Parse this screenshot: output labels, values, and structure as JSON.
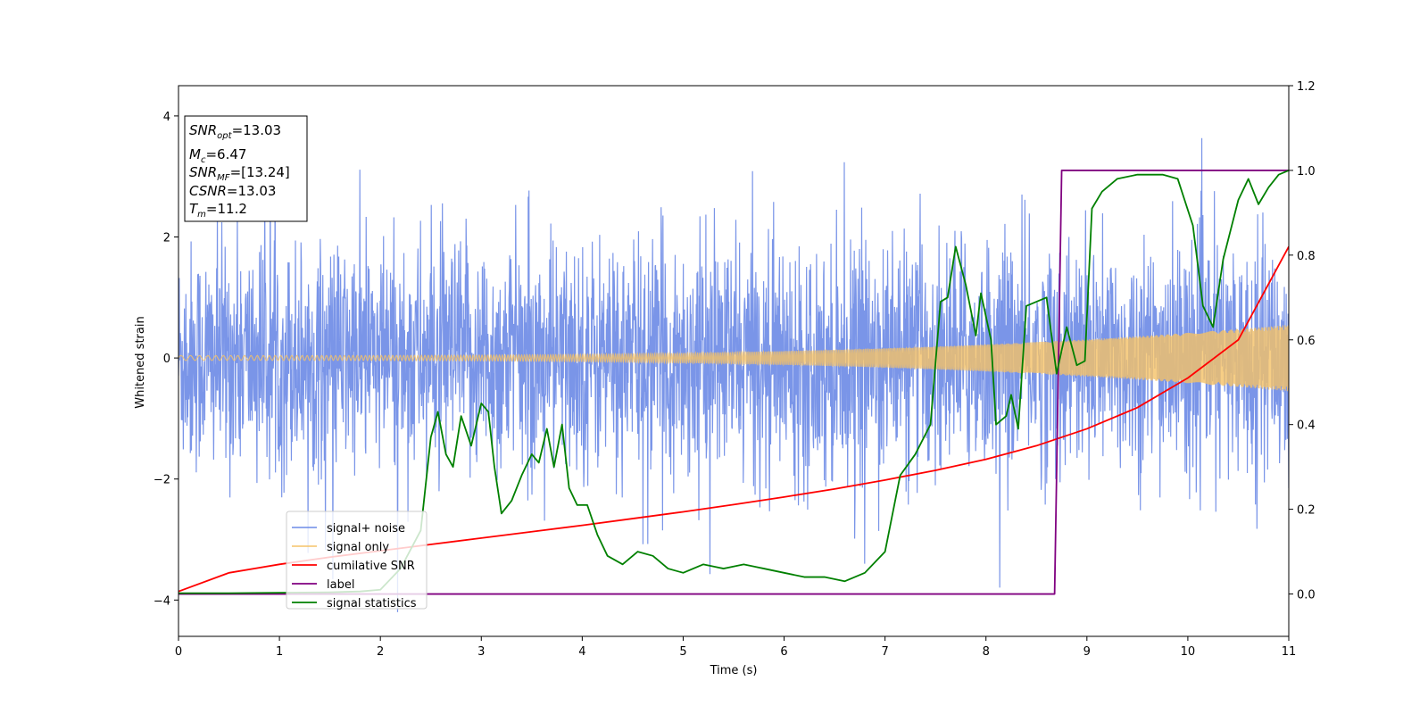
{
  "chart_data": {
    "type": "line",
    "xlabel": "Time (s)",
    "ylabel": "Whitened strain",
    "xlim": [
      0,
      11
    ],
    "ylim_left": [
      -4.6,
      4.5
    ],
    "ylim_right": [
      -0.1,
      1.2
    ],
    "x_ticks": [
      "0",
      "1",
      "2",
      "3",
      "4",
      "5",
      "6",
      "7",
      "8",
      "9",
      "10",
      "11"
    ],
    "y_ticks_left": [
      "4",
      "2",
      "0",
      "−2",
      "−4"
    ],
    "y_ticks_right": [
      "1.2",
      "1.0",
      "0.8",
      "0.6",
      "0.4",
      "0.2",
      "0.0"
    ],
    "info_box": {
      "snr_opt": {
        "main": "SNR",
        "sub": "opt",
        "value": "=13.03"
      },
      "mc": {
        "main": "M",
        "sub": "c",
        "value": "=6.47"
      },
      "snr_mf": {
        "main": "SNR",
        "sub": "MF",
        "value": "=[13.24]"
      },
      "csnr": {
        "main": "CSNR",
        "sub": "",
        "value": "=13.03"
      },
      "tm": {
        "main": "T",
        "sub": "m",
        "value": "=11.2"
      }
    },
    "legend": {
      "placement": "lower-left",
      "entries": [
        "signal+ noise",
        "signal only",
        "cumilative SNR",
        "label",
        "signal statistics"
      ]
    },
    "series": [
      {
        "name": "signal+ noise",
        "axis": "left",
        "color": "#6b8ae6",
        "kind": "noise",
        "std": 0.95
      },
      {
        "name": "signal only",
        "axis": "left",
        "color": "#f5c266",
        "kind": "chirp",
        "amp_start": 0.04,
        "amp_end": 0.55
      },
      {
        "name": "cumilative SNR",
        "axis": "right",
        "color": "#ff0000",
        "x": [
          0,
          0.5,
          1,
          1.5,
          2,
          2.5,
          3,
          3.5,
          4,
          4.5,
          5,
          5.5,
          6,
          6.5,
          7,
          7.5,
          8,
          8.5,
          9,
          9.5,
          10,
          10.5,
          11
        ],
        "y": [
          0.006,
          0.05,
          0.07,
          0.087,
          0.102,
          0.117,
          0.132,
          0.147,
          0.162,
          0.178,
          0.194,
          0.211,
          0.229,
          0.248,
          0.269,
          0.292,
          0.318,
          0.35,
          0.39,
          0.44,
          0.51,
          0.6,
          0.82
        ]
      },
      {
        "name": "label",
        "axis": "right",
        "color": "#800080",
        "x": [
          0,
          8.68,
          8.75,
          11
        ],
        "y": [
          0,
          0,
          1,
          1
        ]
      },
      {
        "name": "signal statistics",
        "axis": "right",
        "color": "#008000",
        "x": [
          0,
          0.5,
          1,
          1.5,
          1.8,
          2.0,
          2.2,
          2.4,
          2.5,
          2.57,
          2.65,
          2.72,
          2.8,
          2.9,
          3.0,
          3.07,
          3.13,
          3.2,
          3.3,
          3.4,
          3.5,
          3.57,
          3.65,
          3.72,
          3.8,
          3.87,
          3.95,
          4.05,
          4.15,
          4.25,
          4.4,
          4.55,
          4.7,
          4.85,
          5.0,
          5.2,
          5.4,
          5.6,
          5.8,
          6.0,
          6.2,
          6.4,
          6.6,
          6.8,
          7.0,
          7.15,
          7.3,
          7.45,
          7.55,
          7.62,
          7.7,
          7.8,
          7.9,
          7.95,
          8.05,
          8.1,
          8.2,
          8.25,
          8.32,
          8.4,
          8.5,
          8.6,
          8.7,
          8.8,
          8.9,
          8.98,
          9.05,
          9.15,
          9.3,
          9.5,
          9.75,
          9.9,
          10.05,
          10.15,
          10.25,
          10.35,
          10.5,
          10.6,
          10.7,
          10.8,
          10.9,
          11
        ],
        "y": [
          0.002,
          0.002,
          0.003,
          0.004,
          0.006,
          0.01,
          0.06,
          0.15,
          0.37,
          0.43,
          0.33,
          0.3,
          0.42,
          0.35,
          0.45,
          0.43,
          0.3,
          0.19,
          0.22,
          0.28,
          0.33,
          0.31,
          0.39,
          0.3,
          0.4,
          0.25,
          0.21,
          0.21,
          0.14,
          0.09,
          0.07,
          0.1,
          0.09,
          0.06,
          0.05,
          0.07,
          0.06,
          0.07,
          0.06,
          0.05,
          0.04,
          0.04,
          0.03,
          0.05,
          0.1,
          0.28,
          0.33,
          0.4,
          0.69,
          0.7,
          0.82,
          0.73,
          0.61,
          0.71,
          0.6,
          0.4,
          0.42,
          0.47,
          0.39,
          0.68,
          0.69,
          0.7,
          0.52,
          0.63,
          0.54,
          0.55,
          0.91,
          0.95,
          0.98,
          0.99,
          0.99,
          0.98,
          0.87,
          0.68,
          0.63,
          0.79,
          0.93,
          0.98,
          0.92,
          0.96,
          0.99,
          1.0
        ]
      }
    ]
  }
}
